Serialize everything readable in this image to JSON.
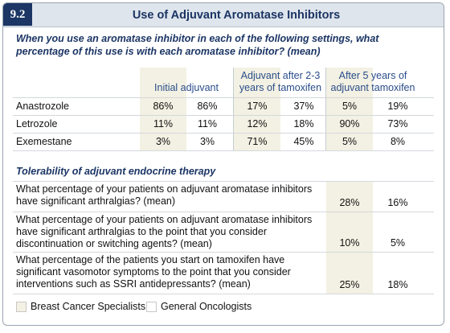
{
  "badge": "9.2",
  "title": "Use of Adjuvant Aromatase Inhibitors",
  "question": "When you use an aromatase inhibitor in each of the following settings, what percentage of this use is with each aromatase inhibitor? (mean)",
  "table": {
    "column_groups": [
      "Initial adjuvant",
      "Adjuvant after 2-3 years of tamoxifen",
      "After 5 years of adjuvant tamoxifen"
    ],
    "rows": [
      {
        "label": "Anastrozole",
        "cells": [
          "86%",
          "86%",
          "17%",
          "37%",
          "5%",
          "19%"
        ]
      },
      {
        "label": "Letrozole",
        "cells": [
          "11%",
          "11%",
          "12%",
          "18%",
          "90%",
          "73%"
        ]
      },
      {
        "label": "Exemestane",
        "cells": [
          "3%",
          "3%",
          "71%",
          "45%",
          "5%",
          "8%"
        ]
      }
    ]
  },
  "tolerability": {
    "heading": "Tolerability of adjuvant endocrine therapy",
    "rows": [
      {
        "label": "What percentage of your patients on adjuvant aromatase inhibitors have significant arthralgias? (mean)",
        "cells": [
          "28%",
          "16%"
        ]
      },
      {
        "label": "What percentage of your patients on adjuvant aromatase inhibitors have significant arthralgias to the point that you consider discontinuation or switching agents? (mean)",
        "cells": [
          "10%",
          "5%"
        ]
      },
      {
        "label": "What percentage of the patients you start on tamoxifen have significant vasomotor symptoms to the point that you consider interventions such as SSRI antidepressants? (mean)",
        "cells": [
          "25%",
          "18%"
        ]
      }
    ]
  },
  "legend": [
    "Breast Cancer Specialists",
    "General Oncologists"
  ]
}
